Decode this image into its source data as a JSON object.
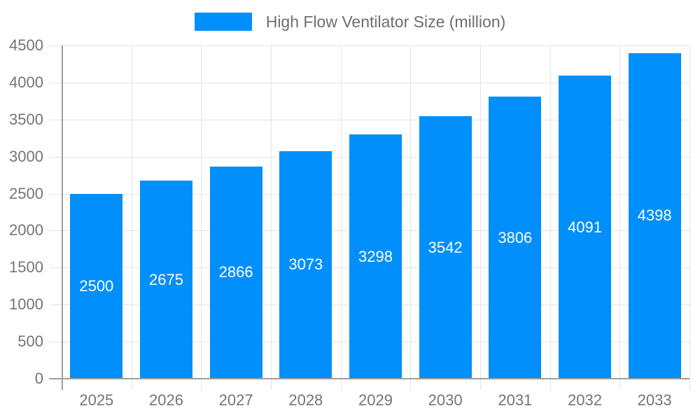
{
  "chart_data": {
    "type": "bar",
    "title": "High Flow Ventilator Size (million)",
    "categories": [
      "2025",
      "2026",
      "2027",
      "2028",
      "2029",
      "2030",
      "2031",
      "2032",
      "2033"
    ],
    "values": [
      2500,
      2675,
      2866,
      3073,
      3298,
      3542,
      3806,
      4091,
      4398
    ],
    "xlabel": "",
    "ylabel": "",
    "ylim": [
      0,
      4500
    ],
    "ytick_step": 500,
    "yticks": [
      0,
      500,
      1000,
      1500,
      2000,
      2500,
      3000,
      3500,
      4000,
      4500
    ],
    "grid": true,
    "legend_position": "top",
    "bar_fraction_of_slot": 0.75,
    "value_labels": "inside-center",
    "colors": {
      "bar": "#008FFB",
      "bar_label": "#ffffff",
      "axis_text": "#757575",
      "legend_text": "#6e6e6e",
      "gridline": "#e3e3e3",
      "axis_line": "#9e9e9e",
      "background": "#ffffff"
    }
  }
}
